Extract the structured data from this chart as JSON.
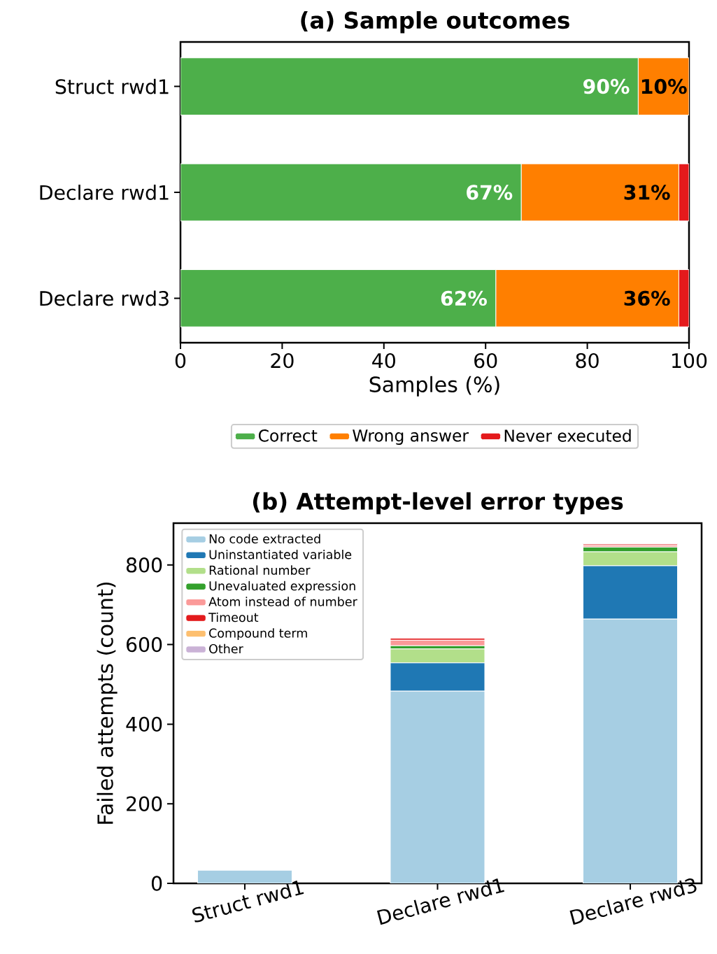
{
  "chart_data": [
    {
      "type": "bar",
      "title": "(a) Sample outcomes",
      "orientation": "horizontal",
      "stacked": true,
      "xlabel": "Samples (%)",
      "categories": [
        "Struct rwd1",
        "Declare rwd1",
        "Declare rwd3"
      ],
      "xlim": [
        0,
        100
      ],
      "xticks": [
        0,
        20,
        40,
        60,
        80,
        100
      ],
      "legend": "bottom",
      "series": [
        {
          "name": "Correct",
          "color": "#4daf4a",
          "values": [
            90,
            67,
            62
          ],
          "value_labels": [
            "90%",
            "67%",
            "62%"
          ]
        },
        {
          "name": "Wrong answer",
          "color": "#ff7f00",
          "values": [
            10,
            31,
            36
          ],
          "value_labels": [
            "10%",
            "31%",
            "36%"
          ]
        },
        {
          "name": "Never executed",
          "color": "#e41a1c",
          "values": [
            0,
            2,
            2
          ],
          "value_labels": [
            null,
            null,
            null
          ]
        }
      ]
    },
    {
      "type": "bar",
      "title": "(b) Attempt-level error types",
      "stacked": true,
      "ylabel": "Failed attempts (count)",
      "categories": [
        "Struct rwd1",
        "Declare rwd1",
        "Declare rwd3"
      ],
      "ylim": [
        0,
        905
      ],
      "yticks": [
        0,
        200,
        400,
        600,
        800
      ],
      "legend": "top left",
      "series": [
        {
          "name": "No code extracted",
          "color": "#a6cee3",
          "values": [
            33,
            483,
            664
          ]
        },
        {
          "name": "Uninstantiated variable",
          "color": "#1f78b4",
          "values": [
            0,
            71,
            134
          ]
        },
        {
          "name": "Rational number",
          "color": "#b2df8a",
          "values": [
            0,
            35,
            35
          ]
        },
        {
          "name": "Unevaluated expression",
          "color": "#33a02c",
          "values": [
            0,
            8,
            12
          ]
        },
        {
          "name": "Atom instead of number",
          "color": "#fb9a99",
          "values": [
            0,
            14,
            5
          ]
        },
        {
          "name": "Timeout",
          "color": "#e31a1c",
          "values": [
            0,
            5,
            3
          ]
        },
        {
          "name": "Compound term",
          "color": "#fdbf6f",
          "values": [
            0,
            0,
            0
          ]
        },
        {
          "name": "Other",
          "color": "#cab2d6",
          "values": [
            0,
            0,
            0
          ]
        }
      ]
    }
  ]
}
